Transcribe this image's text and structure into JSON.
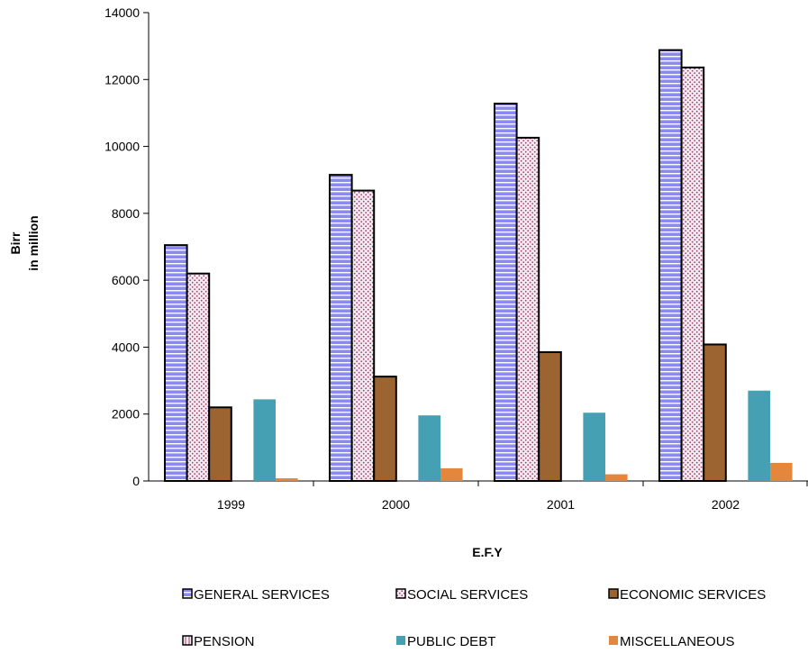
{
  "chart_data": {
    "type": "bar",
    "title": "",
    "xlabel": "E.F.Y",
    "ylabel_lines": [
      "Birr",
      "in million"
    ],
    "ylim": [
      0,
      14000
    ],
    "yticks": [
      "0",
      "2000",
      "4000",
      "6000",
      "8000",
      "10000",
      "12000",
      "14000"
    ],
    "categories": [
      "1999",
      "2000",
      "2001",
      "2002"
    ],
    "series": [
      {
        "name": "GENERAL SERVICES",
        "values": [
          7050,
          9150,
          11280,
          12880
        ]
      },
      {
        "name": "SOCIAL SERVICES",
        "values": [
          6200,
          8680,
          10260,
          12360
        ]
      },
      {
        "name": "ECONOMIC SERVICES",
        "values": [
          2200,
          3120,
          3850,
          4080
        ]
      },
      {
        "name": "PENSION",
        "values": [
          0,
          0,
          0,
          0
        ]
      },
      {
        "name": "PUBLIC DEBT",
        "values": [
          2440,
          1960,
          2040,
          2700
        ]
      },
      {
        "name": "MISCELLANEOUS",
        "values": [
          80,
          380,
          200,
          540
        ]
      }
    ],
    "grid": false,
    "legend_position": "bottom"
  },
  "colors": {
    "general": "#8a8af0",
    "general_stripe": "#ffffff",
    "social": "#f6eaf2",
    "social_dot": "#9a4a70",
    "economic": "#9b6431",
    "pension": "#f6eaf2",
    "public_debt": "#46a0b4",
    "misc": "#e4873c"
  }
}
